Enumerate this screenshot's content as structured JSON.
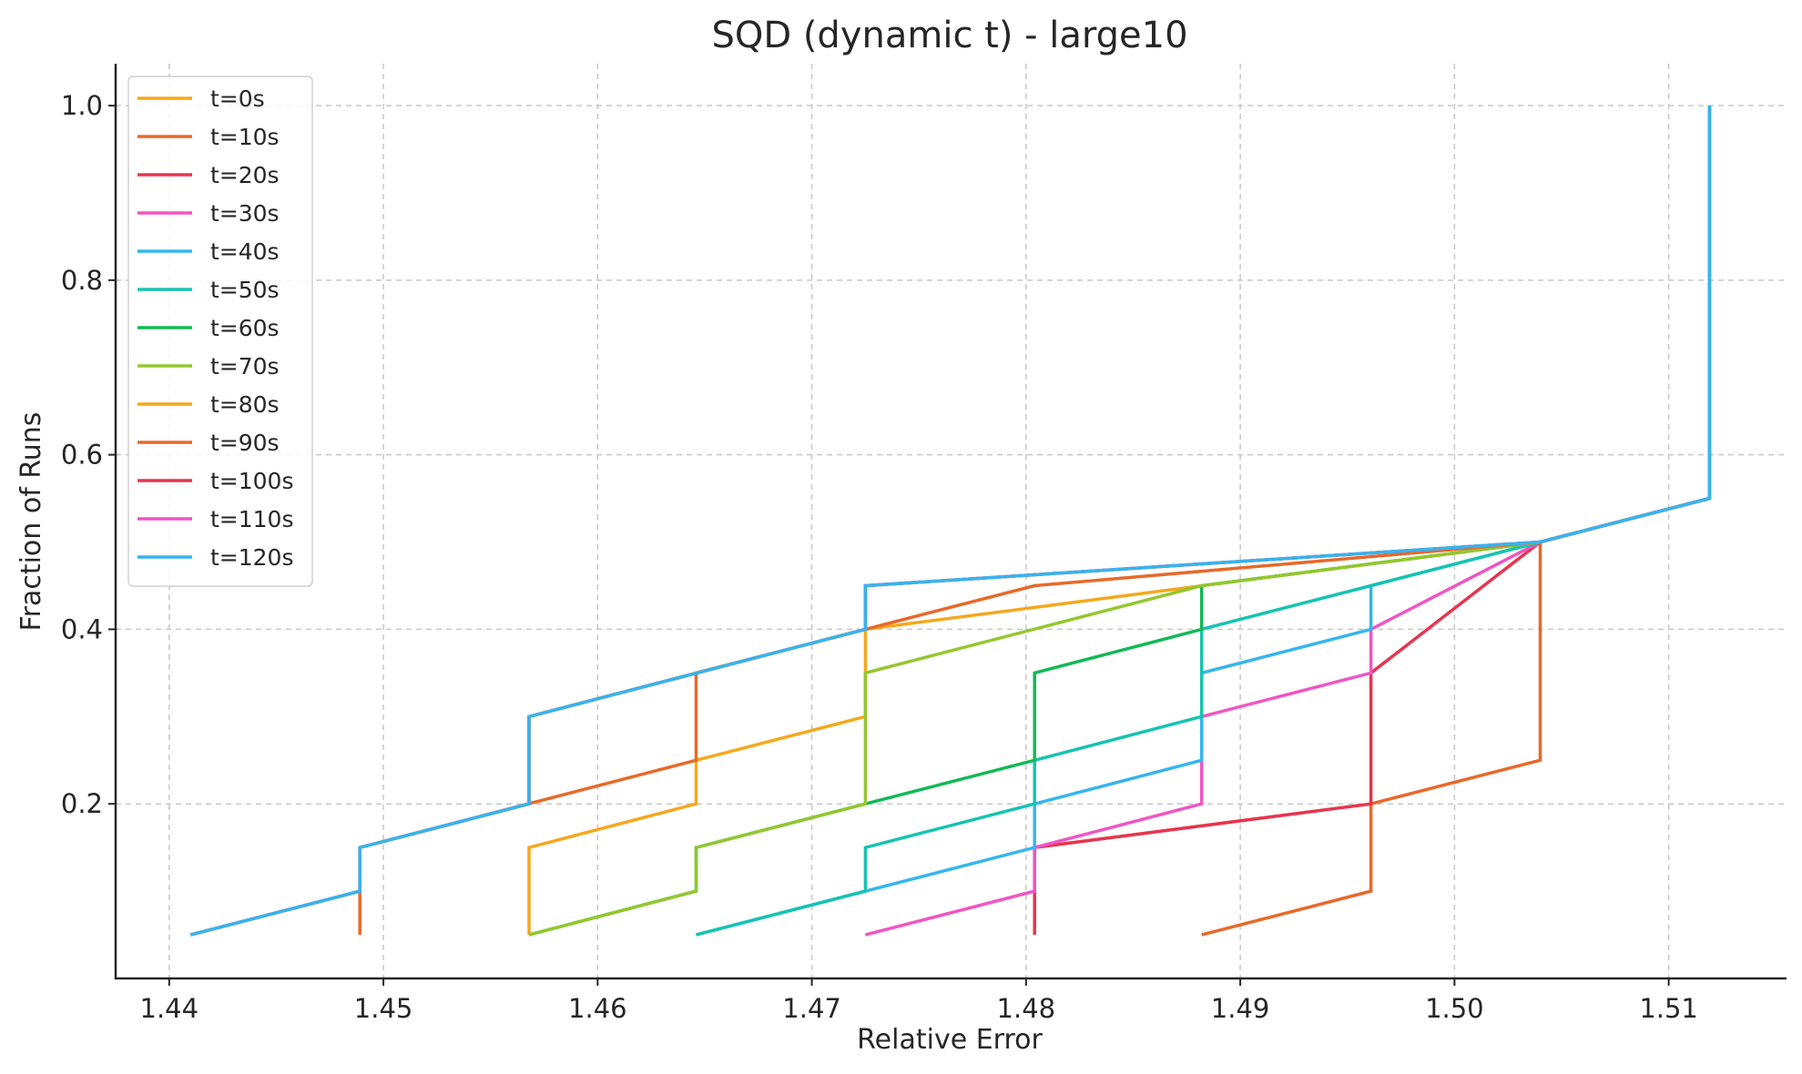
{
  "chart_data": {
    "type": "line",
    "title": "SQD (dynamic t) - large10",
    "xlabel": "Relative Error",
    "ylabel": "Fraction of Runs",
    "xlim": [
      1.4375,
      1.5155
    ],
    "ylim": [
      0.0,
      1.048
    ],
    "xticks": [
      1.44,
      1.45,
      1.46,
      1.47,
      1.48,
      1.49,
      1.5,
      1.51
    ],
    "xtick_labels": [
      "1.44",
      "1.45",
      "1.46",
      "1.47",
      "1.48",
      "1.49",
      "1.50",
      "1.51"
    ],
    "yticks": [
      0.2,
      0.4,
      0.6,
      0.8,
      1.0
    ],
    "ytick_labels": [
      "0.2",
      "0.4",
      "0.6",
      "0.8",
      "1.0"
    ],
    "grid": true,
    "legend_position": "top-left",
    "series": [
      {
        "name": "t=0s",
        "color": "#f5a81c",
        "x": [
          1.4568,
          1.4568,
          1.4646,
          1.4646,
          1.4725,
          1.4725,
          1.504,
          1.5119,
          1.5119
        ],
        "y": [
          0.05,
          0.15,
          0.2,
          0.25,
          0.3,
          0.4,
          0.5,
          0.55,
          1.0
        ]
      },
      {
        "name": "t=10s",
        "color": "#e8692a",
        "x": [
          1.4882,
          1.4961,
          1.4961,
          1.504,
          1.504,
          1.5119,
          1.5119
        ],
        "y": [
          0.05,
          0.1,
          0.2,
          0.25,
          0.5,
          0.55,
          1.0
        ]
      },
      {
        "name": "t=20s",
        "color": "#e8344e",
        "x": [
          1.4804,
          1.4804,
          1.4961,
          1.4961,
          1.504,
          1.5119,
          1.5119
        ],
        "y": [
          0.05,
          0.15,
          0.2,
          0.35,
          0.5,
          0.55,
          1.0
        ]
      },
      {
        "name": "t=30s",
        "color": "#f055c3",
        "x": [
          1.4725,
          1.4804,
          1.4804,
          1.4882,
          1.4882,
          1.4961,
          1.4961,
          1.504,
          1.5119,
          1.5119
        ],
        "y": [
          0.05,
          0.1,
          0.15,
          0.2,
          0.3,
          0.35,
          0.4,
          0.5,
          0.55,
          1.0
        ]
      },
      {
        "name": "t=40s",
        "color": "#35b5ee",
        "x": [
          1.4646,
          1.4804,
          1.4804,
          1.4882,
          1.4882,
          1.4961,
          1.4961,
          1.504,
          1.5119,
          1.5119
        ],
        "y": [
          0.05,
          0.15,
          0.2,
          0.25,
          0.35,
          0.4,
          0.45,
          0.5,
          0.55,
          1.0
        ]
      },
      {
        "name": "t=50s",
        "color": "#16c3b3",
        "x": [
          1.4646,
          1.4725,
          1.4725,
          1.4804,
          1.4804,
          1.4882,
          1.4882,
          1.4961,
          1.504,
          1.5119,
          1.5119
        ],
        "y": [
          0.05,
          0.1,
          0.15,
          0.2,
          0.25,
          0.3,
          0.4,
          0.45,
          0.5,
          0.55,
          1.0
        ]
      },
      {
        "name": "t=60s",
        "color": "#12b955",
        "x": [
          1.4568,
          1.4646,
          1.4646,
          1.4725,
          1.4725,
          1.4804,
          1.4804,
          1.4882,
          1.4882,
          1.504,
          1.5119,
          1.5119
        ],
        "y": [
          0.05,
          0.1,
          0.15,
          0.2,
          0.2,
          0.25,
          0.35,
          0.4,
          0.45,
          0.5,
          0.55,
          1.0
        ]
      },
      {
        "name": "t=70s",
        "color": "#94c72e",
        "x": [
          1.4568,
          1.4646,
          1.4646,
          1.4725,
          1.4725,
          1.4882,
          1.504,
          1.5119,
          1.5119
        ],
        "y": [
          0.05,
          0.1,
          0.15,
          0.2,
          0.35,
          0.45,
          0.5,
          0.55,
          1.0
        ]
      },
      {
        "name": "t=80s",
        "color": "#f5a81c",
        "x": [
          1.441,
          1.4489,
          1.4489,
          1.4568,
          1.4568,
          1.4646,
          1.4646,
          1.4725,
          1.4725,
          1.504,
          1.5119,
          1.5119
        ],
        "y": [
          0.05,
          0.1,
          0.15,
          0.2,
          0.3,
          0.35,
          0.35,
          0.4,
          0.45,
          0.5,
          0.55,
          1.0
        ]
      },
      {
        "name": "t=90s",
        "color": "#e8692a",
        "x": [
          1.4489,
          1.4489,
          1.4646,
          1.4646,
          1.4725,
          1.4804,
          1.504,
          1.5119,
          1.5119
        ],
        "y": [
          0.05,
          0.15,
          0.25,
          0.35,
          0.4,
          0.45,
          0.5,
          0.55,
          1.0
        ]
      },
      {
        "name": "t=100s",
        "color": "#e8344e",
        "x": [
          1.441,
          1.4489,
          1.4489,
          1.4568,
          1.4568,
          1.4725,
          1.4725,
          1.504,
          1.5119,
          1.5119
        ],
        "y": [
          0.05,
          0.1,
          0.15,
          0.2,
          0.3,
          0.4,
          0.45,
          0.5,
          0.55,
          1.0
        ]
      },
      {
        "name": "t=110s",
        "color": "#f055c3",
        "x": [
          1.441,
          1.4489,
          1.4489,
          1.4568,
          1.4568,
          1.4725,
          1.4725,
          1.504,
          1.5119,
          1.5119
        ],
        "y": [
          0.05,
          0.1,
          0.15,
          0.2,
          0.3,
          0.4,
          0.45,
          0.5,
          0.55,
          1.0
        ]
      },
      {
        "name": "t=120s",
        "color": "#35b5ee",
        "x": [
          1.441,
          1.4489,
          1.4489,
          1.4568,
          1.4568,
          1.4725,
          1.4725,
          1.504,
          1.5119,
          1.5119
        ],
        "y": [
          0.05,
          0.1,
          0.15,
          0.2,
          0.3,
          0.4,
          0.45,
          0.5,
          0.55,
          1.0
        ]
      }
    ]
  }
}
